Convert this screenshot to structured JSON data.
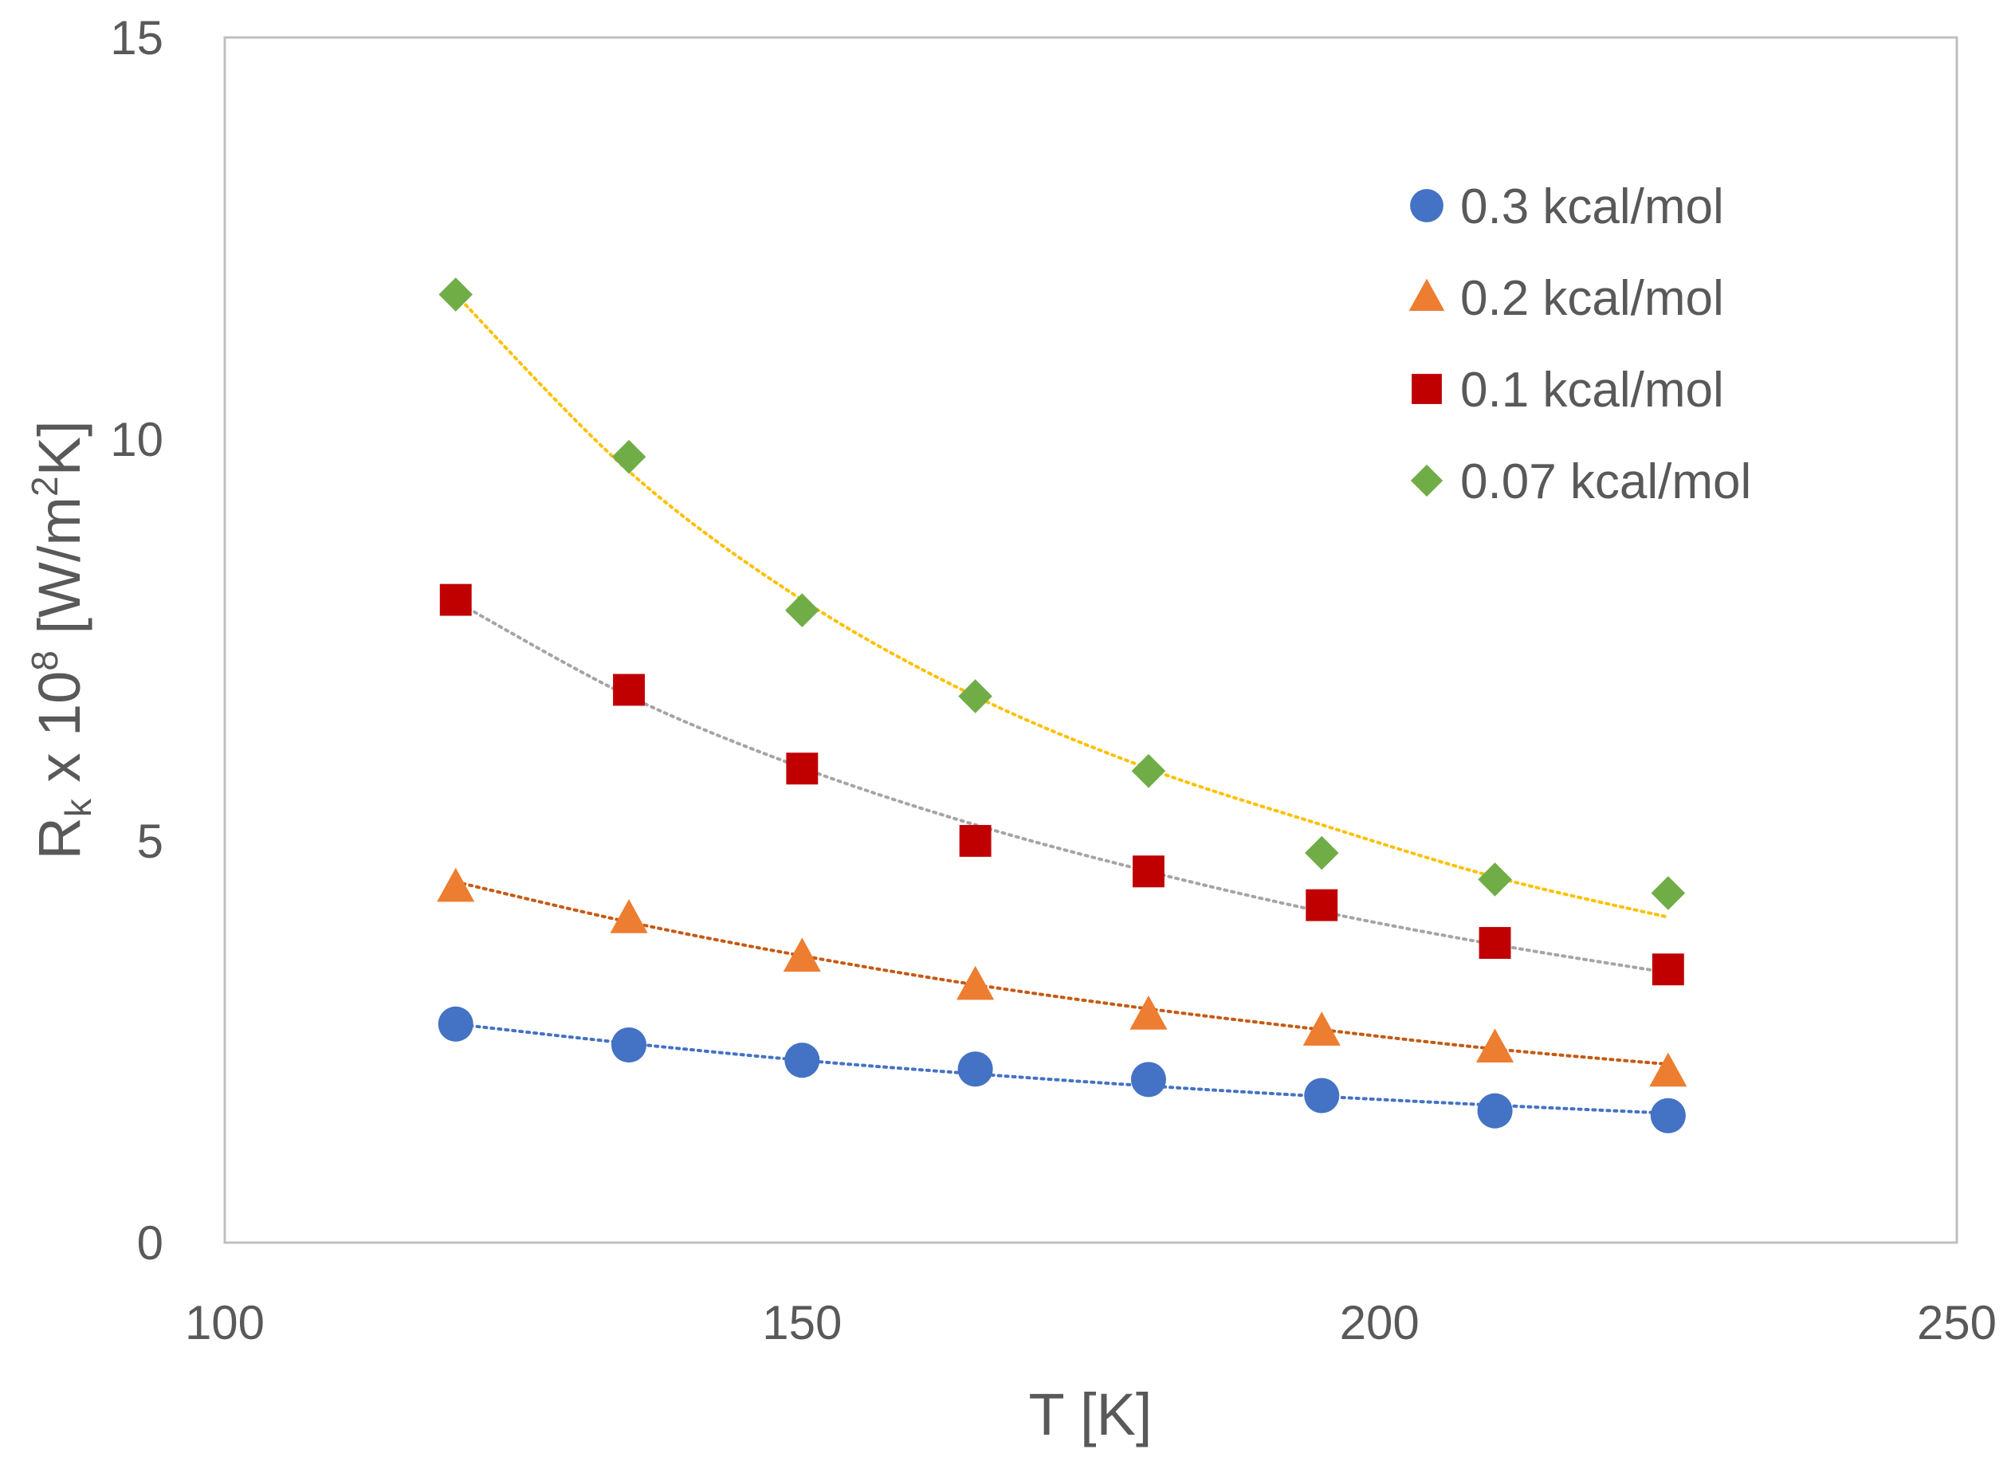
{
  "chart_data": {
    "type": "scatter",
    "title": "",
    "xlabel": "T [K]",
    "ylabel": {
      "prefix": "R",
      "sub": "k",
      "mid": " x 10",
      "sup": "8",
      "pre_unit": " [W/m",
      "unit_sup": "2",
      "suffix": "K]"
    },
    "xlim": [
      100,
      250
    ],
    "ylim": [
      0,
      15
    ],
    "xticks": [
      "100",
      "150",
      "200",
      "250"
    ],
    "yticks": [
      "0",
      "5",
      "10",
      "15"
    ],
    "grid": false,
    "legend_position": "top-right",
    "x": [
      120,
      135,
      150,
      165,
      180,
      195,
      210,
      225
    ],
    "series": [
      {
        "name": "0.3 kcal/mol",
        "marker": "circle",
        "color": "#4472C4",
        "trend_color": "#4472C4",
        "values": [
          2.72,
          2.46,
          2.27,
          2.16,
          2.03,
          1.83,
          1.64,
          1.58
        ],
        "trend": [
          2.72,
          2.48,
          2.27,
          2.1,
          1.95,
          1.82,
          1.71,
          1.61
        ]
      },
      {
        "name": "0.2 kcal/mol",
        "marker": "triangle",
        "color": "#ED7D31",
        "trend_color": "#C55A11",
        "values": [
          4.42,
          4.03,
          3.55,
          3.2,
          2.83,
          2.63,
          2.42,
          2.12
        ],
        "trend": [
          4.49,
          3.99,
          3.57,
          3.21,
          2.91,
          2.65,
          2.41,
          2.22
        ]
      },
      {
        "name": "0.1 kcal/mol",
        "marker": "square",
        "color": "#C00000",
        "trend_color": "#A5A5A5",
        "values": [
          8.0,
          6.88,
          5.9,
          5.0,
          4.62,
          4.2,
          3.73,
          3.4
        ],
        "trend": [
          7.98,
          6.8,
          5.91,
          5.2,
          4.62,
          4.12,
          3.71,
          3.36
        ]
      },
      {
        "name": "0.07 kcal/mol",
        "marker": "diamond",
        "color": "#70AD47",
        "trend_color": "#FFC000",
        "values": [
          11.8,
          9.78,
          7.87,
          6.8,
          5.87,
          4.85,
          4.52,
          4.35
        ],
        "trend": [
          11.8,
          9.6,
          8.0,
          6.8,
          5.9,
          5.2,
          4.55,
          4.05
        ]
      }
    ]
  }
}
